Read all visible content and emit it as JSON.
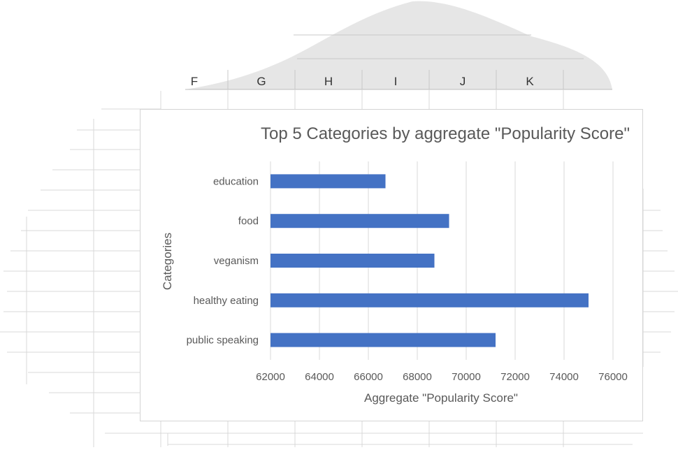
{
  "sheet": {
    "columns": [
      "F",
      "G",
      "H",
      "I",
      "J",
      "K"
    ]
  },
  "chart_data": {
    "type": "bar",
    "orientation": "horizontal",
    "title": "Top 5 Categories by aggregate \"Popularity Score\"",
    "xlabel": "Aggregate \"Popularity Score\"",
    "ylabel": "Categories",
    "categories": [
      "education",
      "food",
      "veganism",
      "healthy eating",
      "public speaking"
    ],
    "values": [
      66700,
      69300,
      68700,
      75000,
      71200
    ],
    "xlim": [
      62000,
      76000
    ],
    "xticks": [
      "62000",
      "64000",
      "66000",
      "68000",
      "70000",
      "72000",
      "74000",
      "76000"
    ],
    "grid": true,
    "bar_color": "#4472c4"
  }
}
